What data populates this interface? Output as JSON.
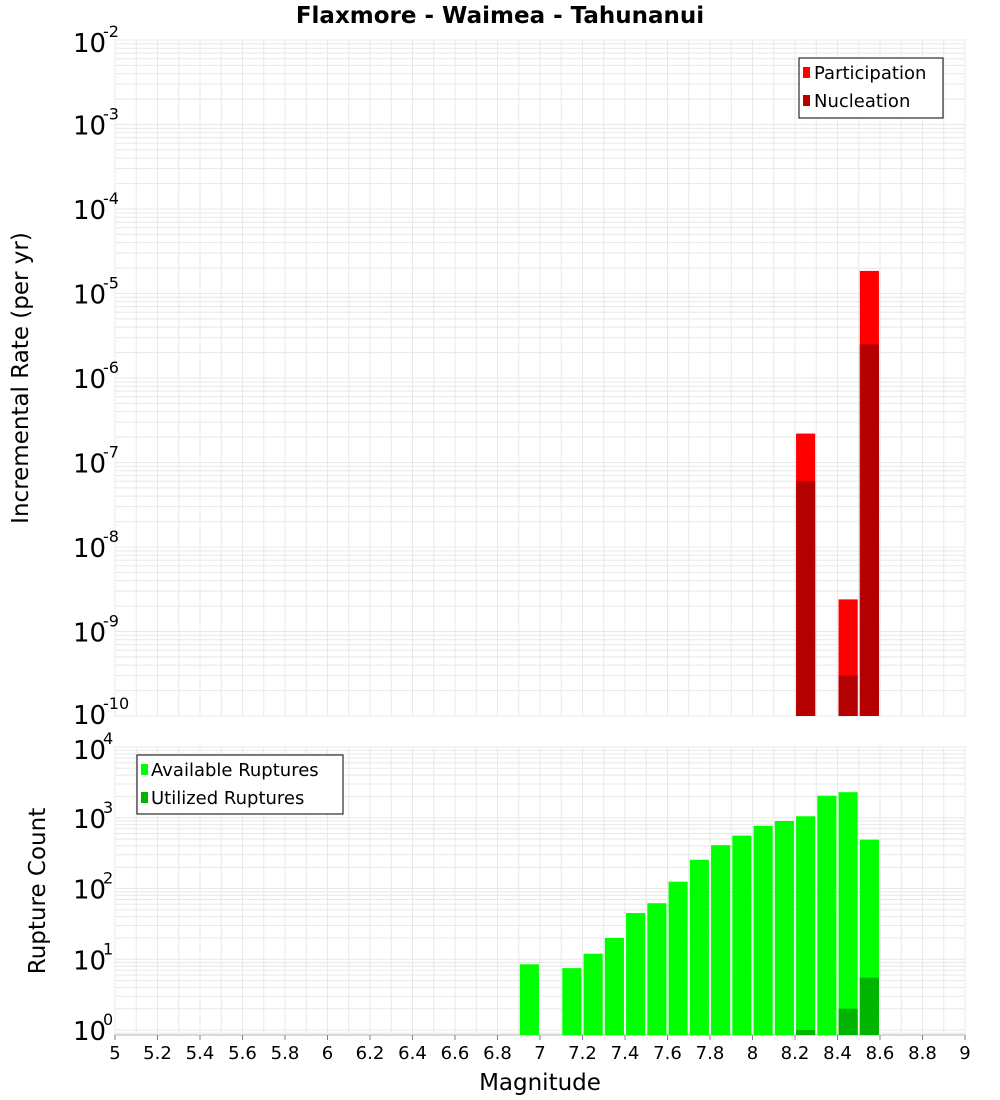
{
  "chart_data": {
    "title": "Flaxmore - Waimea - Tahunanui",
    "xlabel": "Magnitude",
    "xlim": [
      5,
      9
    ],
    "xticks": [
      "5",
      "5.2",
      "5.4",
      "5.6",
      "5.8",
      "6",
      "6.2",
      "6.4",
      "6.6",
      "6.8",
      "7",
      "7.2",
      "7.4",
      "7.6",
      "7.8",
      "8",
      "8.2",
      "8.4",
      "8.6",
      "8.8",
      "9"
    ],
    "bin_width": 0.1,
    "panels": [
      {
        "type": "bar",
        "yscale": "log",
        "ylabel": "Incremental Rate (per yr)",
        "ylim_exp": [
          -10,
          -2
        ],
        "yticks": [
          {
            "base": "10",
            "exp": "-2"
          },
          {
            "base": "10",
            "exp": "-3"
          },
          {
            "base": "10",
            "exp": "-4"
          },
          {
            "base": "10",
            "exp": "-5"
          },
          {
            "base": "10",
            "exp": "-6"
          },
          {
            "base": "10",
            "exp": "-7"
          },
          {
            "base": "10",
            "exp": "-8"
          },
          {
            "base": "10",
            "exp": "-9"
          },
          {
            "base": "10",
            "exp": "-10"
          }
        ],
        "legend": {
          "position": "top-right"
        },
        "series": [
          {
            "name": "Participation",
            "color": "#ff0000",
            "points": [
              {
                "x": 8.25,
                "y": 2.2e-07
              },
              {
                "x": 8.45,
                "y": 2.4e-09
              },
              {
                "x": 8.55,
                "y": 1.85e-05
              }
            ]
          },
          {
            "name": "Nucleation",
            "color": "#b40000",
            "points": [
              {
                "x": 8.25,
                "y": 6e-08
              },
              {
                "x": 8.45,
                "y": 3e-10
              },
              {
                "x": 8.55,
                "y": 2.5e-06
              }
            ]
          }
        ]
      },
      {
        "type": "bar",
        "yscale": "log",
        "ylabel": "Rupture Count",
        "ylim_exp": [
          -0.07,
          4
        ],
        "yticks": [
          {
            "base": "10",
            "exp": "4"
          },
          {
            "base": "10",
            "exp": "3"
          },
          {
            "base": "10",
            "exp": "2"
          },
          {
            "base": "10",
            "exp": "1"
          },
          {
            "base": "10",
            "exp": "0"
          }
        ],
        "legend": {
          "position": "top-left"
        },
        "series": [
          {
            "name": "Available Ruptures",
            "color": "#00ff00",
            "points": [
              {
                "x": 6.95,
                "y": 8.5
              },
              {
                "x": 7.15,
                "y": 7.5
              },
              {
                "x": 7.25,
                "y": 12
              },
              {
                "x": 7.35,
                "y": 20
              },
              {
                "x": 7.45,
                "y": 45
              },
              {
                "x": 7.55,
                "y": 62
              },
              {
                "x": 7.65,
                "y": 125
              },
              {
                "x": 7.75,
                "y": 255
              },
              {
                "x": 7.85,
                "y": 410
              },
              {
                "x": 7.95,
                "y": 560
              },
              {
                "x": 8.05,
                "y": 770
              },
              {
                "x": 8.15,
                "y": 900
              },
              {
                "x": 8.25,
                "y": 1050
              },
              {
                "x": 8.35,
                "y": 2050
              },
              {
                "x": 8.45,
                "y": 2300
              },
              {
                "x": 8.55,
                "y": 490
              }
            ]
          },
          {
            "name": "Utilized Ruptures",
            "color": "#00b400",
            "points": [
              {
                "x": 8.25,
                "y": 1
              },
              {
                "x": 8.45,
                "y": 2
              },
              {
                "x": 8.55,
                "y": 5.5
              }
            ]
          }
        ]
      }
    ]
  }
}
